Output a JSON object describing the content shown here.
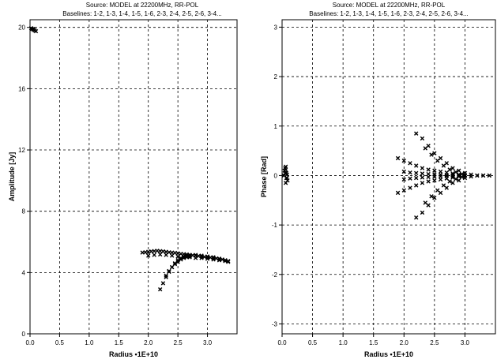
{
  "chart_data": [
    {
      "type": "scatter",
      "title": "Source: MODEL  at 22200MHz, RR-POL",
      "subtitle": "Baselines: 1-2, 1-3, 1-4, 1-5, 1-6, 2-3, 2-4, 2-5, 2-6, 3-4...",
      "xlabel": "Radius •1E+10",
      "ylabel": "Amplitude [Jy]",
      "xlim": [
        0,
        3.5
      ],
      "ylim": [
        0,
        20.5
      ],
      "xticks": [
        "0.0",
        "0.5",
        "1.0",
        "1.5",
        "2.0",
        "2.5",
        "3.0"
      ],
      "xtick_values": [
        0,
        0.5,
        1.0,
        1.5,
        2.0,
        2.5,
        3.0
      ],
      "yticks": [
        "0",
        "4",
        "8",
        "12",
        "16",
        "20"
      ],
      "ytick_values": [
        0,
        4,
        8,
        12,
        16,
        20
      ],
      "grid": true,
      "marker": "x",
      "series": [
        {
          "x": [
            0.02,
            0.03,
            0.05,
            0.06,
            0.08,
            0.1
          ],
          "y": [
            19.95,
            19.9,
            19.9,
            19.85,
            19.8,
            19.75
          ]
        },
        {
          "x": [
            1.9,
            1.95,
            2.0,
            2.05,
            2.1,
            2.15,
            2.2,
            2.25,
            2.3,
            2.35,
            2.4,
            2.45,
            2.5,
            2.55,
            2.6,
            2.65,
            2.7,
            2.75,
            2.8,
            2.85,
            2.9,
            2.95,
            3.0,
            3.05,
            3.1,
            3.15,
            3.2,
            3.25,
            3.3,
            3.35
          ],
          "y": [
            5.3,
            5.32,
            5.35,
            5.38,
            5.4,
            5.42,
            5.4,
            5.38,
            5.35,
            5.32,
            5.3,
            5.28,
            5.25,
            5.22,
            5.2,
            5.18,
            5.15,
            5.12,
            5.1,
            5.08,
            5.05,
            5.02,
            5.0,
            4.98,
            4.95,
            4.92,
            4.9,
            4.85,
            4.8,
            4.75
          ]
        },
        {
          "x": [
            2.0,
            2.1,
            2.2,
            2.3,
            2.4,
            2.5,
            2.6,
            2.7,
            2.8,
            2.9,
            3.0,
            3.1,
            3.2,
            3.3,
            3.35
          ],
          "y": [
            5.1,
            5.15,
            5.18,
            5.15,
            5.1,
            5.05,
            5.0,
            5.0,
            4.95,
            4.95,
            4.9,
            4.85,
            4.8,
            4.75,
            4.7
          ]
        },
        {
          "x": [
            2.2,
            2.25,
            2.3,
            2.35,
            2.4,
            2.45,
            2.5,
            2.55,
            2.6,
            2.65,
            2.7,
            2.8,
            2.9,
            3.0,
            3.1,
            3.2,
            3.3
          ],
          "y": [
            2.9,
            3.3,
            3.7,
            4.05,
            4.35,
            4.6,
            4.8,
            4.95,
            5.05,
            5.1,
            5.15,
            5.15,
            5.1,
            5.05,
            5.0,
            4.9,
            4.8
          ]
        },
        {
          "x": [
            2.3,
            2.35,
            2.4,
            2.45,
            2.5,
            2.55,
            2.6,
            2.65,
            2.7
          ],
          "y": [
            3.8,
            4.1,
            4.35,
            4.55,
            4.7,
            4.85,
            4.95,
            5.0,
            5.05
          ]
        }
      ]
    },
    {
      "type": "scatter",
      "title": "Source: MODEL  at 22200MHz, RR-POL",
      "subtitle": "Baselines: 1-2, 1-3, 1-4, 1-5, 1-6, 2-3, 2-4, 2-5, 2-6, 3-4...",
      "xlabel": "Radius •1E+10",
      "ylabel": "Phase [Rad]",
      "xlim": [
        0,
        3.5
      ],
      "ylim": [
        -3.2,
        3.15
      ],
      "xticks": [
        "0.0",
        "0.5",
        "1.0",
        "1.5",
        "2.0",
        "2.5",
        "3.0"
      ],
      "xtick_values": [
        0,
        0.5,
        1.0,
        1.5,
        2.0,
        2.5,
        3.0
      ],
      "yticks": [
        "3",
        "2",
        "1",
        "0",
        "-1",
        "-2",
        "-3"
      ],
      "ytick_values": [
        3,
        2,
        1,
        0,
        -1,
        -2,
        -3
      ],
      "grid": true,
      "marker": "x",
      "series": [
        {
          "x": [
            0.03,
            0.04,
            0.05,
            0.06,
            0.07,
            0.08,
            0.09,
            0.06,
            0.05,
            0.07,
            0.08,
            0.06
          ],
          "y": [
            0.0,
            0.1,
            0.15,
            0.12,
            0.05,
            -0.05,
            -0.1,
            -0.15,
            0.05,
            -0.05,
            0.02,
            0.18
          ]
        },
        {
          "x": [
            2.2,
            2.3,
            2.4,
            2.5,
            2.6,
            2.7,
            2.8,
            2.9,
            3.0,
            3.1,
            3.2,
            3.3,
            3.4
          ],
          "y": [
            0.85,
            0.75,
            0.6,
            0.45,
            0.35,
            0.25,
            0.15,
            0.1,
            0.05,
            0.02,
            0.0,
            0.0,
            0.0
          ]
        },
        {
          "x": [
            2.2,
            2.3,
            2.4,
            2.5,
            2.6,
            2.7,
            2.8,
            2.9,
            3.0,
            3.1,
            3.2,
            3.3,
            3.4
          ],
          "y": [
            -0.85,
            -0.75,
            -0.6,
            -0.45,
            -0.35,
            -0.25,
            -0.15,
            -0.1,
            -0.05,
            -0.02,
            0.0,
            0.0,
            0.0
          ]
        },
        {
          "x": [
            1.9,
            2.0,
            2.1,
            2.2,
            2.3,
            2.4,
            2.5,
            2.6,
            2.7,
            2.8,
            2.9,
            3.0
          ],
          "y": [
            0.35,
            0.3,
            0.25,
            0.2,
            0.15,
            0.12,
            0.1,
            0.08,
            0.06,
            0.04,
            0.02,
            0.01
          ]
        },
        {
          "x": [
            1.9,
            2.0,
            2.1,
            2.2,
            2.3,
            2.4,
            2.5,
            2.6,
            2.7,
            2.8,
            2.9,
            3.0
          ],
          "y": [
            -0.35,
            -0.3,
            -0.25,
            -0.2,
            -0.15,
            -0.12,
            -0.1,
            -0.08,
            -0.06,
            -0.04,
            -0.02,
            -0.01
          ]
        },
        {
          "x": [
            2.35,
            2.45,
            2.55,
            2.65,
            2.75,
            2.85,
            2.95
          ],
          "y": [
            0.55,
            0.42,
            0.3,
            0.2,
            0.12,
            0.07,
            0.03
          ]
        },
        {
          "x": [
            2.35,
            2.45,
            2.55,
            2.65,
            2.75,
            2.85,
            2.95
          ],
          "y": [
            -0.55,
            -0.42,
            -0.3,
            -0.2,
            -0.12,
            -0.07,
            -0.03
          ]
        },
        {
          "x": [
            2.0,
            2.1,
            2.2,
            2.3,
            2.4,
            2.5,
            2.6,
            2.7,
            2.8,
            2.9
          ],
          "y": [
            0.08,
            0.06,
            0.05,
            0.04,
            0.03,
            0.02,
            0.02,
            0.01,
            0.01,
            0.0
          ]
        },
        {
          "x": [
            2.0,
            2.1,
            2.2,
            2.3,
            2.4,
            2.5,
            2.6,
            2.7,
            2.8,
            2.9
          ],
          "y": [
            -0.08,
            -0.06,
            -0.05,
            -0.04,
            -0.03,
            -0.02,
            -0.02,
            -0.01,
            -0.01,
            0.0
          ]
        }
      ]
    }
  ]
}
